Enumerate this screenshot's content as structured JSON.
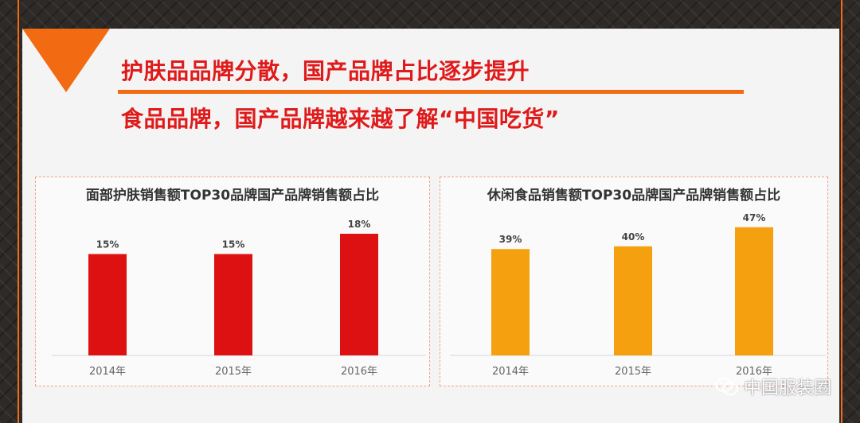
{
  "headlines": {
    "line1": "护肤品品牌分散，国产品牌占比逐步提升",
    "line2": "食品品牌，国产品牌越来越了解“中国吃货”"
  },
  "colors": {
    "accent": "#f26b12",
    "headline": "#e01a1a",
    "bar_red": "#dd1111",
    "bar_orange": "#f5a00e"
  },
  "chart_data": [
    {
      "type": "bar",
      "title": "面部护肤销售额TOP30品牌国产品牌销售额占比",
      "categories": [
        "2014年",
        "2015年",
        "2016年"
      ],
      "values": [
        15,
        15,
        18
      ],
      "data_labels": [
        "15%",
        "15%",
        "18%"
      ],
      "color": "#dd1111",
      "grid": false
    },
    {
      "type": "bar",
      "title": "休闲食品销售额TOP30品牌国产品牌销售额占比",
      "categories": [
        "2014年",
        "2015年",
        "2016年"
      ],
      "values": [
        39,
        40,
        47
      ],
      "data_labels": [
        "39%",
        "40%",
        "47%"
      ],
      "color": "#f5a00e",
      "grid": false
    }
  ],
  "watermark": {
    "text": "中国服装圈",
    "icon": "wechat-icon"
  }
}
